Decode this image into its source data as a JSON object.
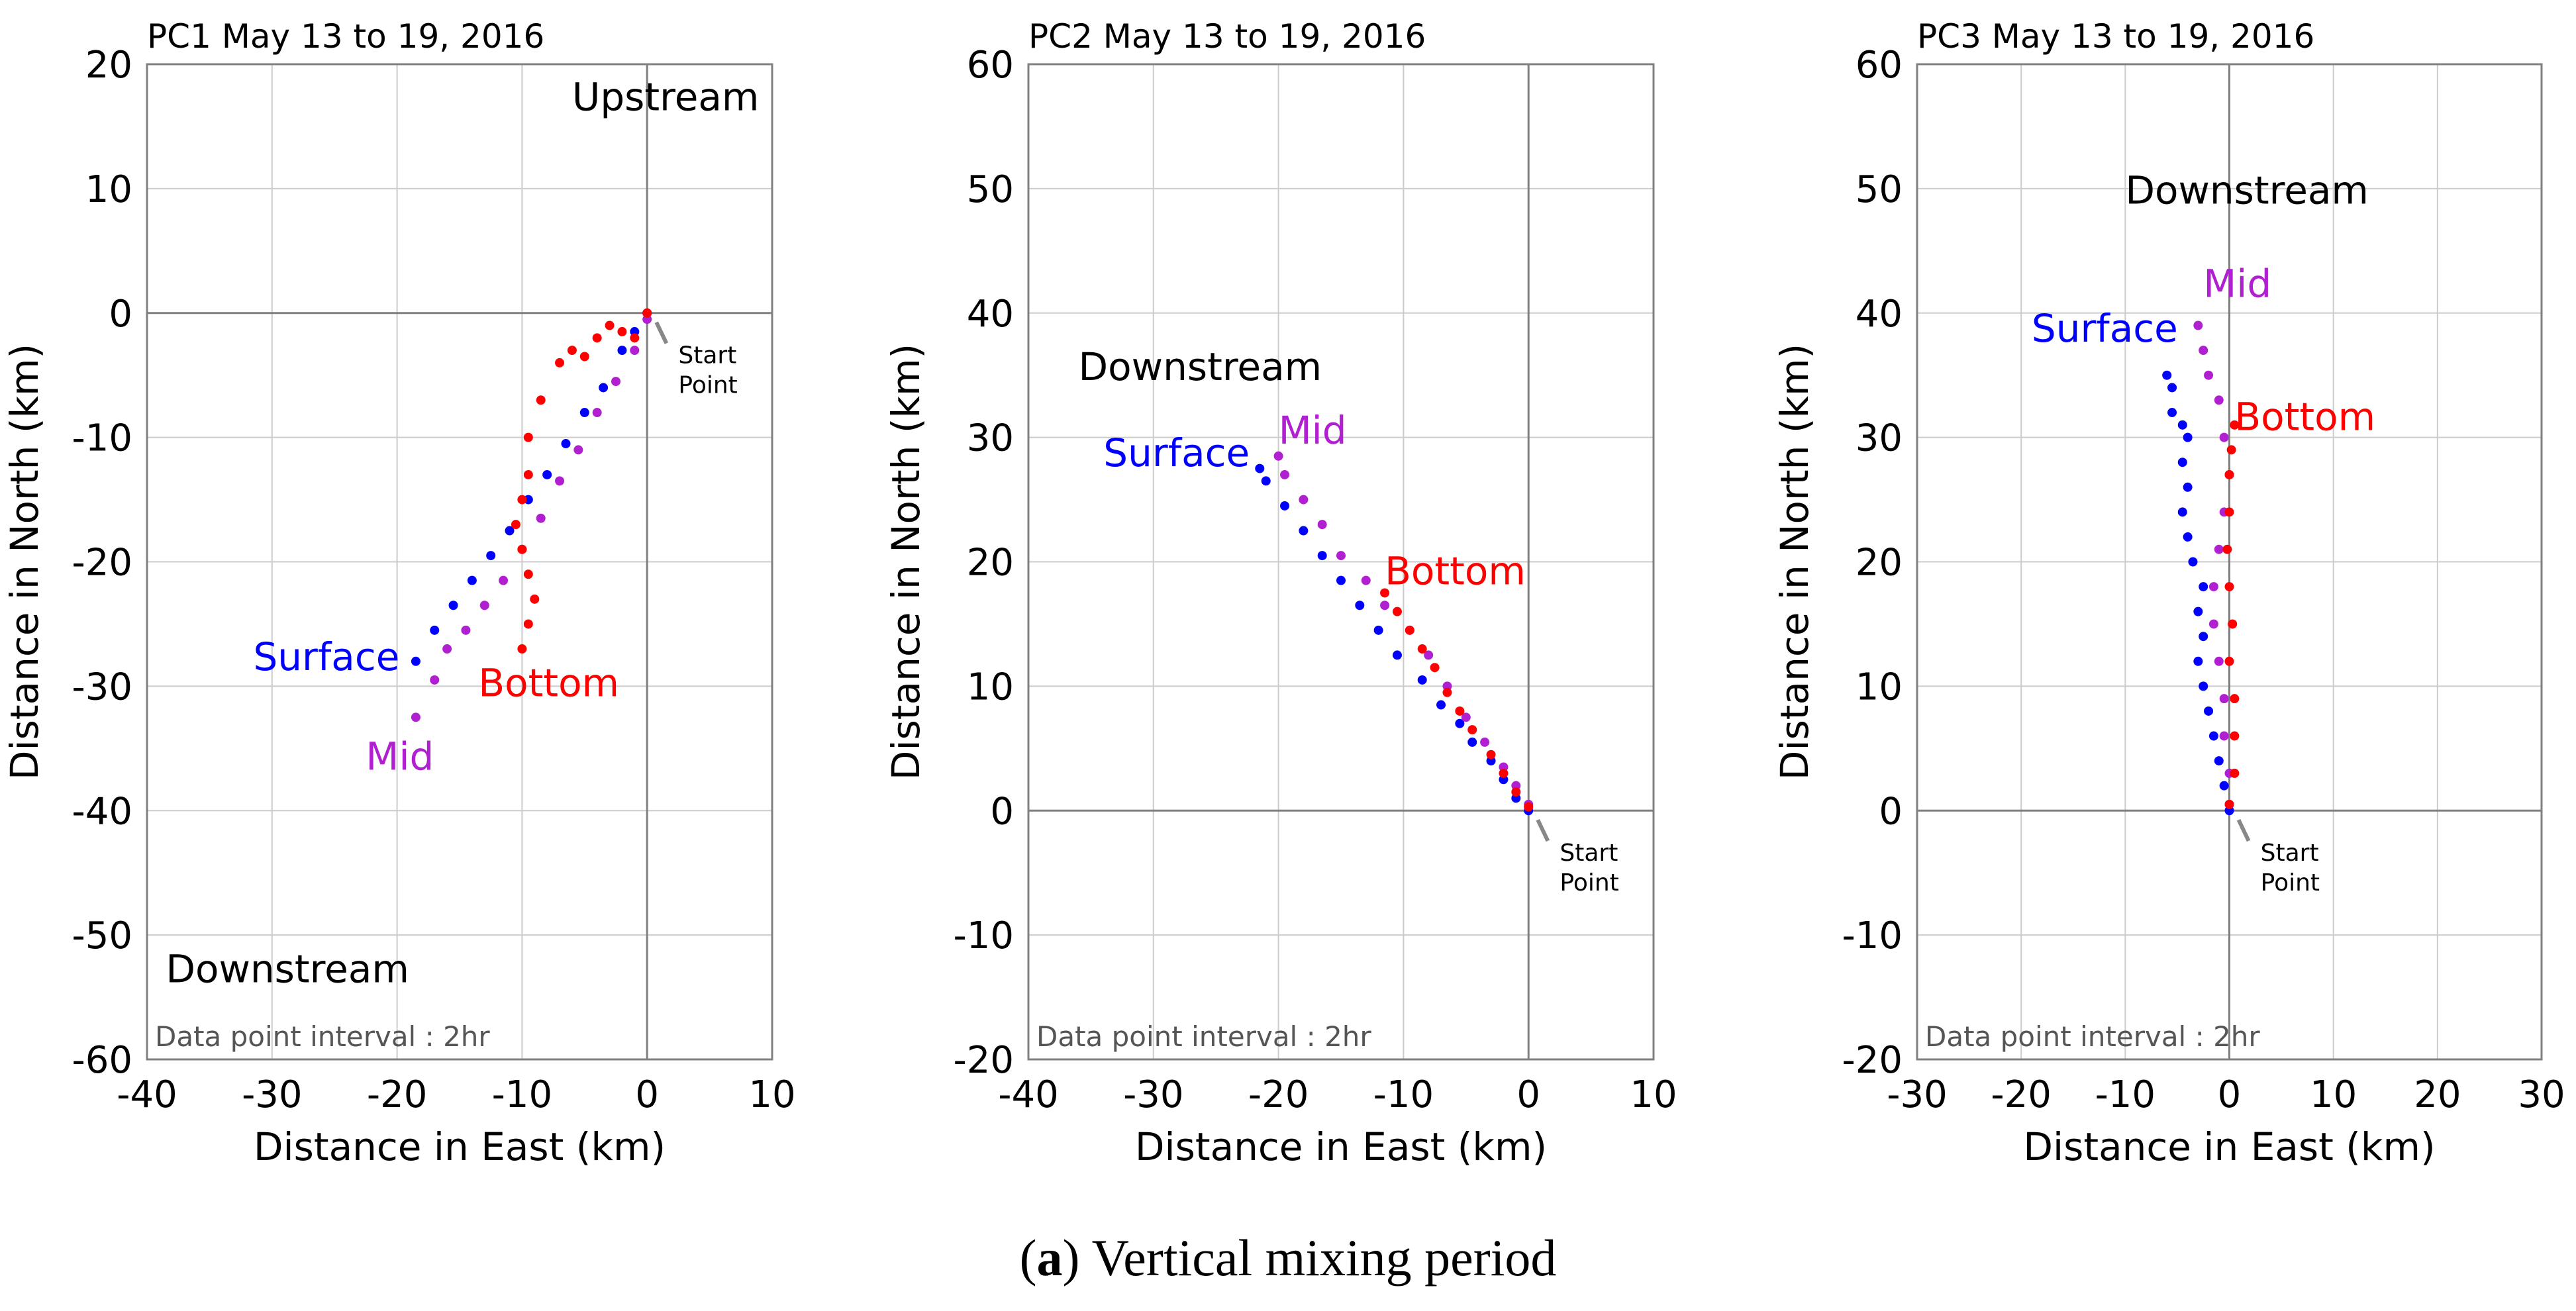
{
  "caption": {
    "label": "a",
    "text": "Vertical mixing period"
  },
  "colors": {
    "surface": "#0000ff",
    "mid": "#b020d0",
    "bottom": "#ff0000",
    "grid": "#cccccc",
    "axis": "#808080",
    "text": "#000000",
    "note": "#555555",
    "pointer": "#888888"
  },
  "chart_data": [
    {
      "type": "scatter",
      "title": "PC1  May 13 to 19, 2016",
      "xlabel": "Distance in East (km)",
      "ylabel": "Distance in North (km)",
      "xlim": [
        -40,
        10
      ],
      "ylim": [
        -60,
        20
      ],
      "xticks": [
        -40,
        -30,
        -20,
        -10,
        0,
        10
      ],
      "yticks": [
        -60,
        -50,
        -40,
        -30,
        -20,
        -10,
        0,
        10,
        20
      ],
      "grid": true,
      "note": "Data point interval : 2hr",
      "start_label": [
        "Start",
        "Point"
      ],
      "start_label_anchor": [
        2.5,
        -3.5
      ],
      "annotations": [
        {
          "text": "Upstream",
          "x": -6,
          "y": 16.3
        },
        {
          "text": "Downstream",
          "x": -38.5,
          "y": -53.8
        }
      ],
      "series": [
        {
          "name": "Surface",
          "label": "Surface",
          "color_key": "surface",
          "label_at": [
            -31.5,
            -28.7
          ],
          "points": [
            [
              0,
              0
            ],
            [
              -1,
              -1.5
            ],
            [
              -2,
              -3
            ],
            [
              -3.5,
              -6
            ],
            [
              -5,
              -8
            ],
            [
              -6.5,
              -10.5
            ],
            [
              -8,
              -13
            ],
            [
              -9.5,
              -15
            ],
            [
              -11,
              -17.5
            ],
            [
              -12.5,
              -19.5
            ],
            [
              -14,
              -21.5
            ],
            [
              -15.5,
              -23.5
            ],
            [
              -17,
              -25.5
            ],
            [
              -18.5,
              -28
            ]
          ]
        },
        {
          "name": "Mid",
          "label": "Mid",
          "color_key": "mid",
          "label_at": [
            -22.5,
            -36.7
          ],
          "points": [
            [
              0,
              -0.5
            ],
            [
              -1,
              -3
            ],
            [
              -2.5,
              -5.5
            ],
            [
              -4,
              -8
            ],
            [
              -5.5,
              -11
            ],
            [
              -7,
              -13.5
            ],
            [
              -8.5,
              -16.5
            ],
            [
              -10,
              -19
            ],
            [
              -11.5,
              -21.5
            ],
            [
              -13,
              -23.5
            ],
            [
              -14.5,
              -25.5
            ],
            [
              -16,
              -27
            ],
            [
              -17,
              -29.5
            ],
            [
              -18.5,
              -32.5
            ]
          ]
        },
        {
          "name": "Bottom",
          "label": "Bottom",
          "color_key": "bottom",
          "label_at": [
            -13.5,
            -30.8
          ],
          "points": [
            [
              0,
              0
            ],
            [
              -1,
              -2
            ],
            [
              -2,
              -1.5
            ],
            [
              -3,
              -1
            ],
            [
              -4,
              -2
            ],
            [
              -5,
              -3.5
            ],
            [
              -6,
              -3
            ],
            [
              -7,
              -4
            ],
            [
              -8.5,
              -7
            ],
            [
              -9.5,
              -10
            ],
            [
              -9.5,
              -13
            ],
            [
              -10,
              -15
            ],
            [
              -10.5,
              -17
            ],
            [
              -10,
              -19
            ],
            [
              -9.5,
              -21
            ],
            [
              -9,
              -23
            ],
            [
              -9.5,
              -25
            ],
            [
              -10,
              -27
            ]
          ]
        }
      ]
    },
    {
      "type": "scatter",
      "title": "PC2  May 13 to 19, 2016",
      "xlabel": "Distance in East (km)",
      "ylabel": "Distance in North (km)",
      "xlim": [
        -40,
        10
      ],
      "ylim": [
        -20,
        60
      ],
      "xticks": [
        -40,
        -30,
        -20,
        -10,
        0,
        10
      ],
      "yticks": [
        -20,
        -10,
        0,
        10,
        20,
        30,
        40,
        50,
        60
      ],
      "grid": true,
      "note": "Data point interval : 2hr",
      "start_label": [
        "Start",
        "Point"
      ],
      "start_label_anchor": [
        2.5,
        -3.5
      ],
      "annotations": [
        {
          "text": "Downstream",
          "x": -36,
          "y": 34.6
        }
      ],
      "series": [
        {
          "name": "Surface",
          "label": "Surface",
          "color_key": "surface",
          "label_at": [
            -34,
            27.7
          ],
          "points": [
            [
              0,
              0
            ],
            [
              -1,
              1
            ],
            [
              -2,
              2.5
            ],
            [
              -3,
              4
            ],
            [
              -4.5,
              5.5
            ],
            [
              -5.5,
              7
            ],
            [
              -7,
              8.5
            ],
            [
              -8.5,
              10.5
            ],
            [
              -10.5,
              12.5
            ],
            [
              -12,
              14.5
            ],
            [
              -13.5,
              16.5
            ],
            [
              -15,
              18.5
            ],
            [
              -16.5,
              20.5
            ],
            [
              -18,
              22.5
            ],
            [
              -19.5,
              24.5
            ],
            [
              -21,
              26.5
            ],
            [
              -21.5,
              27.5
            ]
          ]
        },
        {
          "name": "Mid",
          "label": "Mid",
          "color_key": "mid",
          "label_at": [
            -20,
            29.5
          ],
          "points": [
            [
              0,
              0.5
            ],
            [
              -1,
              2
            ],
            [
              -2,
              3.5
            ],
            [
              -3.5,
              5.5
            ],
            [
              -5,
              7.5
            ],
            [
              -6.5,
              10
            ],
            [
              -8,
              12.5
            ],
            [
              -9.5,
              14.5
            ],
            [
              -11.5,
              16.5
            ],
            [
              -13,
              18.5
            ],
            [
              -15,
              20.5
            ],
            [
              -16.5,
              23
            ],
            [
              -18,
              25
            ],
            [
              -19.5,
              27
            ],
            [
              -20,
              28.5
            ]
          ]
        },
        {
          "name": "Bottom",
          "label": "Bottom",
          "color_key": "bottom",
          "label_at": [
            -11.5,
            18.2
          ],
          "points": [
            [
              0,
              0.3
            ],
            [
              -1,
              1.5
            ],
            [
              -2,
              3
            ],
            [
              -3,
              4.5
            ],
            [
              -4.5,
              6.5
            ],
            [
              -5.5,
              8
            ],
            [
              -6.5,
              9.5
            ],
            [
              -7.5,
              11.5
            ],
            [
              -8.5,
              13
            ],
            [
              -9.5,
              14.5
            ],
            [
              -10.5,
              16
            ],
            [
              -11.5,
              17.5
            ]
          ]
        }
      ]
    },
    {
      "type": "scatter",
      "title": "PC3  May 13 to 19, 2016",
      "xlabel": "Distance in East (km)",
      "ylabel": "Distance in North (km)",
      "xlim": [
        -30,
        30
      ],
      "ylim": [
        -20,
        60
      ],
      "xticks": [
        -30,
        -20,
        -10,
        0,
        10,
        20,
        30
      ],
      "yticks": [
        -20,
        -10,
        0,
        10,
        20,
        30,
        40,
        50,
        60
      ],
      "grid": true,
      "note": "Data point interval : 2hr",
      "start_label": [
        "Start",
        "Point"
      ],
      "start_label_anchor": [
        3,
        -3.5
      ],
      "annotations": [
        {
          "text": "Downstream",
          "x": -10,
          "y": 48.8
        }
      ],
      "series": [
        {
          "name": "Surface",
          "label": "Surface",
          "color_key": "surface",
          "label_at": [
            -19,
            37.7
          ],
          "points": [
            [
              0,
              0
            ],
            [
              -0.5,
              2
            ],
            [
              -1,
              4
            ],
            [
              -1.5,
              6
            ],
            [
              -2,
              8
            ],
            [
              -2.5,
              10
            ],
            [
              -3,
              12
            ],
            [
              -2.5,
              14
            ],
            [
              -3,
              16
            ],
            [
              -2.5,
              18
            ],
            [
              -3.5,
              20
            ],
            [
              -4,
              22
            ],
            [
              -4.5,
              24
            ],
            [
              -4,
              26
            ],
            [
              -4.5,
              28
            ],
            [
              -4,
              30
            ],
            [
              -4.5,
              31
            ],
            [
              -5.5,
              32
            ],
            [
              -5.5,
              34
            ],
            [
              -6,
              35
            ]
          ]
        },
        {
          "name": "Mid",
          "label": "Mid",
          "color_key": "mid",
          "label_at": [
            -2.5,
            41.3
          ],
          "points": [
            [
              0,
              0.5
            ],
            [
              0,
              3
            ],
            [
              -0.5,
              6
            ],
            [
              -0.5,
              9
            ],
            [
              -1,
              12
            ],
            [
              -1.5,
              15
            ],
            [
              -1.5,
              18
            ],
            [
              -1,
              21
            ],
            [
              -0.5,
              24
            ],
            [
              0,
              27
            ],
            [
              -0.5,
              30
            ],
            [
              -1,
              33
            ],
            [
              -2,
              35
            ],
            [
              -2.5,
              37
            ],
            [
              -3,
              39
            ]
          ]
        },
        {
          "name": "Bottom",
          "label": "Bottom",
          "color_key": "bottom",
          "label_at": [
            0.5,
            30.6
          ],
          "points": [
            [
              0,
              0.5
            ],
            [
              0.5,
              3
            ],
            [
              0.5,
              6
            ],
            [
              0.5,
              9
            ],
            [
              0,
              12
            ],
            [
              0.3,
              15
            ],
            [
              0,
              18
            ],
            [
              -0.2,
              21
            ],
            [
              0,
              24
            ],
            [
              0,
              27
            ],
            [
              0.2,
              29
            ],
            [
              0.5,
              31
            ]
          ]
        }
      ]
    }
  ]
}
